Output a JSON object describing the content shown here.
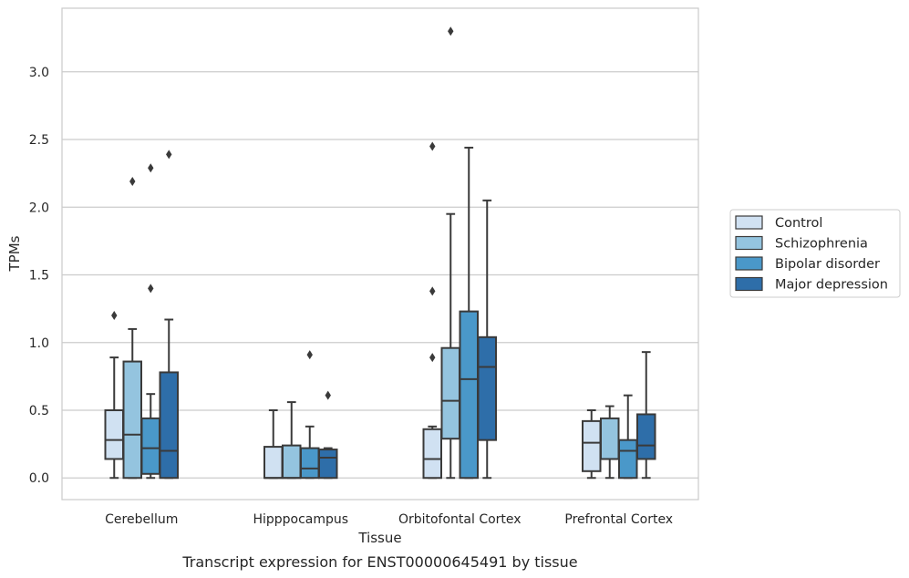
{
  "caption": "Transcript expression for ENST00000645491 by tissue",
  "chart_data": {
    "type": "box",
    "xlabel": "Tissue",
    "ylabel": "TPMs",
    "ylim": [
      -0.16,
      3.47
    ],
    "yticks": [
      0.0,
      0.5,
      1.0,
      1.5,
      2.0,
      2.5,
      3.0
    ],
    "ytick_labels": [
      "0.0",
      "0.5",
      "1.0",
      "1.5",
      "2.0",
      "2.5",
      "3.0"
    ],
    "grid": "horizontal",
    "legend_position": "right",
    "categories": [
      "Cerebellum",
      "Hipppocampus",
      "Orbitofontal Cortex",
      "Prefrontal Cortex"
    ],
    "series": [
      {
        "name": "Control",
        "color": "#d0e1f2",
        "boxes": [
          {
            "whislo": 0.0,
            "q1": 0.14,
            "med": 0.28,
            "q3": 0.5,
            "whishi": 0.89,
            "fliers": [
              1.2
            ]
          },
          {
            "whislo": 0.0,
            "q1": 0.0,
            "med": 0.0,
            "q3": 0.23,
            "whishi": 0.5,
            "fliers": []
          },
          {
            "whislo": 0.0,
            "q1": 0.0,
            "med": 0.14,
            "q3": 0.36,
            "whishi": 0.38,
            "fliers": [
              0.89,
              1.38,
              2.45
            ]
          },
          {
            "whislo": 0.0,
            "q1": 0.05,
            "med": 0.26,
            "q3": 0.42,
            "whishi": 0.5,
            "fliers": []
          }
        ]
      },
      {
        "name": "Schizophrenia",
        "color": "#94c4df",
        "boxes": [
          {
            "whislo": 0.0,
            "q1": 0.0,
            "med": 0.32,
            "q3": 0.86,
            "whishi": 1.1,
            "fliers": [
              2.19
            ]
          },
          {
            "whislo": 0.0,
            "q1": 0.0,
            "med": 0.0,
            "q3": 0.24,
            "whishi": 0.56,
            "fliers": []
          },
          {
            "whislo": 0.0,
            "q1": 0.29,
            "med": 0.57,
            "q3": 0.96,
            "whishi": 1.95,
            "fliers": [
              3.3
            ]
          },
          {
            "whislo": 0.0,
            "q1": 0.14,
            "med": 0.14,
            "q3": 0.44,
            "whishi": 0.53,
            "fliers": []
          }
        ]
      },
      {
        "name": "Bipolar disorder",
        "color": "#4a98c9",
        "boxes": [
          {
            "whislo": 0.0,
            "q1": 0.03,
            "med": 0.22,
            "q3": 0.44,
            "whishi": 0.62,
            "fliers": [
              1.4,
              2.29
            ]
          },
          {
            "whislo": 0.0,
            "q1": 0.0,
            "med": 0.07,
            "q3": 0.22,
            "whishi": 0.38,
            "fliers": [
              0.91
            ]
          },
          {
            "whislo": 0.0,
            "q1": 0.0,
            "med": 0.73,
            "q3": 1.23,
            "whishi": 2.44,
            "fliers": []
          },
          {
            "whislo": 0.0,
            "q1": 0.0,
            "med": 0.2,
            "q3": 0.28,
            "whishi": 0.61,
            "fliers": []
          }
        ]
      },
      {
        "name": "Major depression",
        "color": "#2e6ea9",
        "boxes": [
          {
            "whislo": 0.0,
            "q1": 0.0,
            "med": 0.2,
            "q3": 0.78,
            "whishi": 1.17,
            "fliers": [
              2.39
            ]
          },
          {
            "whislo": 0.0,
            "q1": 0.0,
            "med": 0.15,
            "q3": 0.21,
            "whishi": 0.22,
            "fliers": [
              0.61
            ]
          },
          {
            "whislo": 0.0,
            "q1": 0.28,
            "med": 0.82,
            "q3": 1.04,
            "whishi": 2.05,
            "fliers": []
          },
          {
            "whislo": 0.0,
            "q1": 0.14,
            "med": 0.24,
            "q3": 0.47,
            "whishi": 0.93,
            "fliers": []
          }
        ]
      }
    ]
  }
}
